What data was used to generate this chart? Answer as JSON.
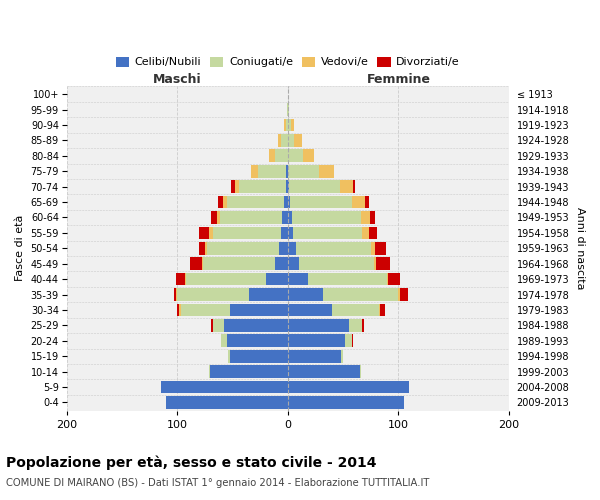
{
  "age_groups_bottom_to_top": [
    "0-4",
    "5-9",
    "10-14",
    "15-19",
    "20-24",
    "25-29",
    "30-34",
    "35-39",
    "40-44",
    "45-49",
    "50-54",
    "55-59",
    "60-64",
    "65-69",
    "70-74",
    "75-79",
    "80-84",
    "85-89",
    "90-94",
    "95-99",
    "100+"
  ],
  "birth_years_bottom_to_top": [
    "2009-2013",
    "2004-2008",
    "1999-2003",
    "1994-1998",
    "1989-1993",
    "1984-1988",
    "1979-1983",
    "1974-1978",
    "1969-1973",
    "1964-1968",
    "1959-1963",
    "1954-1958",
    "1949-1953",
    "1944-1948",
    "1939-1943",
    "1934-1938",
    "1929-1933",
    "1924-1928",
    "1919-1923",
    "1914-1918",
    "≤ 1913"
  ],
  "colors": {
    "celibe": "#4472c4",
    "coniugato": "#c5d9a0",
    "vedovo": "#f0c060",
    "divorziato": "#cc0000"
  },
  "male_celibe": [
    110,
    115,
    70,
    52,
    55,
    58,
    52,
    35,
    20,
    12,
    8,
    6,
    5,
    3,
    2,
    2,
    0,
    0,
    0,
    0,
    0
  ],
  "male_coniugato": [
    0,
    0,
    1,
    2,
    5,
    10,
    45,
    65,
    72,
    65,
    65,
    62,
    56,
    52,
    42,
    25,
    12,
    6,
    2,
    1,
    0
  ],
  "male_vedovo": [
    0,
    0,
    0,
    0,
    0,
    0,
    1,
    1,
    1,
    1,
    2,
    3,
    3,
    4,
    4,
    6,
    5,
    3,
    1,
    0,
    0
  ],
  "male_divorziato": [
    0,
    0,
    0,
    0,
    0,
    1,
    2,
    2,
    8,
    10,
    5,
    9,
    5,
    4,
    3,
    0,
    0,
    0,
    0,
    0,
    0
  ],
  "female_nubile": [
    105,
    110,
    65,
    48,
    52,
    55,
    40,
    32,
    18,
    10,
    7,
    5,
    4,
    2,
    1,
    0,
    0,
    0,
    0,
    0,
    0
  ],
  "female_coniugata": [
    0,
    0,
    1,
    2,
    6,
    12,
    42,
    68,
    72,
    68,
    68,
    62,
    62,
    56,
    46,
    28,
    14,
    6,
    3,
    1,
    0
  ],
  "female_vedova": [
    0,
    0,
    0,
    0,
    0,
    0,
    1,
    1,
    1,
    2,
    4,
    6,
    8,
    12,
    12,
    14,
    10,
    7,
    3,
    0,
    0
  ],
  "female_divorziata": [
    0,
    0,
    0,
    0,
    1,
    2,
    5,
    8,
    10,
    12,
    10,
    8,
    5,
    3,
    2,
    0,
    0,
    0,
    0,
    0,
    0
  ],
  "xlim": 200,
  "xticks": [
    -200,
    -100,
    0,
    100,
    200
  ],
  "title": "Popolazione per età, sesso e stato civile - 2014",
  "subtitle": "COMUNE DI MAIRANO (BS) - Dati ISTAT 1° gennaio 2014 - Elaborazione TUTTITALIA.IT",
  "ylabel_left": "Fasce di età",
  "ylabel_right": "Anni di nascita",
  "label_maschi": "Maschi",
  "label_femmine": "Femmine",
  "bg_color": "#ffffff",
  "plot_bg": "#f0f0f0",
  "grid_color": "#cccccc"
}
